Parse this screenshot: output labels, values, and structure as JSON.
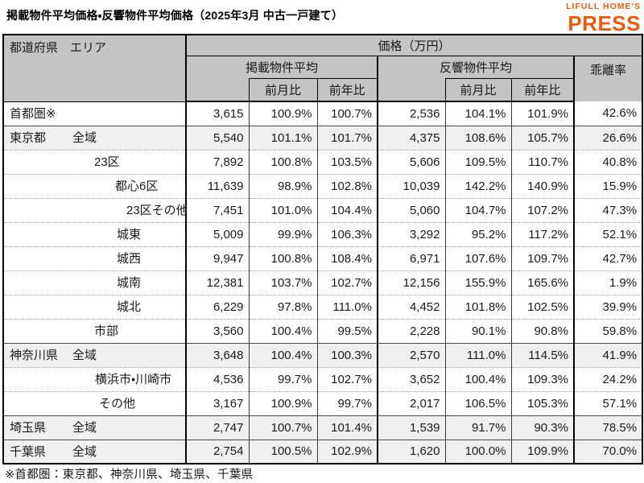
{
  "page": {
    "title": "掲載物件平均価格・反響物件平均価格（2025年3月 中古一戸建て）",
    "logo": {
      "top": "LIFULL HOME'S",
      "bottom": "PRESS",
      "color": "#EA5B0C"
    },
    "footnote": "※首都圏：東京都、神奈川県、埼玉県、千葉県"
  },
  "colors": {
    "logo_orange": "#EA5B0C",
    "header_grey": "#C4C4C4",
    "shaded_row": "#EFEFEF",
    "border_dark": "#000000"
  },
  "table": {
    "header": {
      "corner": "都道府県　エリア",
      "price_group": "価格（万円）",
      "listed_group": "掲載物件平均",
      "response_group": "反響物件平均",
      "divergence": "乖離率",
      "mom": "前月比",
      "yoy": "前年比"
    },
    "rows": [
      {
        "pref": "首都圏※",
        "area": "",
        "indent": 85,
        "shaded": false,
        "sep": "none",
        "cells": [
          "3,615",
          "100.9%",
          "100.7%",
          "2,536",
          "104.1%",
          "101.9%",
          "42.6%"
        ]
      },
      {
        "pref": "東京都",
        "area": "全域",
        "indent": 85,
        "shaded": true,
        "sep": "solid",
        "cells": [
          "5,540",
          "101.1%",
          "101.7%",
          "4,375",
          "108.6%",
          "105.7%",
          "26.6%"
        ]
      },
      {
        "pref": "",
        "area": "23区",
        "indent": 112,
        "shaded": false,
        "sep": "dotted",
        "cells": [
          "7,892",
          "100.8%",
          "103.5%",
          "5,606",
          "109.5%",
          "110.7%",
          "40.8%"
        ]
      },
      {
        "pref": "",
        "area": "都心6区",
        "indent": 138,
        "shaded": false,
        "sep": "dotted",
        "cells": [
          "11,639",
          "98.9%",
          "102.8%",
          "10,039",
          "142.2%",
          "140.9%",
          "15.9%"
        ]
      },
      {
        "pref": "",
        "area": "23区その他",
        "indent": 152,
        "shaded": false,
        "sep": "dotted",
        "cells": [
          "7,451",
          "101.0%",
          "104.4%",
          "5,060",
          "104.7%",
          "107.2%",
          "47.3%"
        ]
      },
      {
        "pref": "",
        "area": "城東",
        "indent": 140,
        "shaded": false,
        "sep": "dotted",
        "cells": [
          "5,009",
          "99.9%",
          "106.3%",
          "3,292",
          "95.2%",
          "117.2%",
          "52.1%"
        ]
      },
      {
        "pref": "",
        "area": "城西",
        "indent": 140,
        "shaded": false,
        "sep": "dotted",
        "cells": [
          "9,947",
          "100.8%",
          "108.4%",
          "6,971",
          "107.6%",
          "109.7%",
          "42.7%"
        ]
      },
      {
        "pref": "",
        "area": "城南",
        "indent": 140,
        "shaded": false,
        "sep": "dotted",
        "cells": [
          "12,381",
          "103.7%",
          "102.7%",
          "12,156",
          "155.9%",
          "165.6%",
          "1.9%"
        ]
      },
      {
        "pref": "",
        "area": "城北",
        "indent": 140,
        "shaded": false,
        "sep": "dotted",
        "cells": [
          "6,229",
          "97.8%",
          "111.0%",
          "4,452",
          "101.8%",
          "102.5%",
          "39.9%"
        ]
      },
      {
        "pref": "",
        "area": "市部",
        "indent": 112,
        "shaded": false,
        "sep": "dotted",
        "cells": [
          "3,560",
          "100.4%",
          "99.5%",
          "2,228",
          "90.1%",
          "90.8%",
          "59.8%"
        ]
      },
      {
        "pref": "神奈川県",
        "area": "全域",
        "indent": 85,
        "shaded": true,
        "sep": "solid",
        "cells": [
          "3,648",
          "100.4%",
          "100.3%",
          "2,570",
          "111.0%",
          "114.5%",
          "41.9%"
        ]
      },
      {
        "pref": "",
        "area": "横浜市・川崎市",
        "indent": 113,
        "shaded": false,
        "sep": "dotted",
        "cells": [
          "4,536",
          "99.7%",
          "102.7%",
          "3,652",
          "100.4%",
          "109.3%",
          "24.2%"
        ]
      },
      {
        "pref": "",
        "area": "その他",
        "indent": 118,
        "shaded": false,
        "sep": "dotted",
        "cells": [
          "3,167",
          "100.9%",
          "99.7%",
          "2,017",
          "106.5%",
          "105.3%",
          "57.1%"
        ]
      },
      {
        "pref": "埼玉県",
        "area": "全域",
        "indent": 85,
        "shaded": true,
        "sep": "solid",
        "cells": [
          "2,747",
          "100.7%",
          "101.4%",
          "1,539",
          "91.7%",
          "90.3%",
          "78.5%"
        ]
      },
      {
        "pref": "千葉県",
        "area": "全域",
        "indent": 85,
        "shaded": true,
        "sep": "solid",
        "cells": [
          "2,754",
          "100.5%",
          "102.9%",
          "1,620",
          "100.0%",
          "109.9%",
          "70.0%"
        ]
      }
    ]
  },
  "chart_data": {
    "type": "table",
    "title": "掲載物件平均価格・反響物件平均価格（2025年3月 中古一戸建て）",
    "unit": "万円",
    "columns": [
      "都道府県",
      "エリア",
      "掲載物件平均 価格",
      "掲載 前月比%",
      "掲載 前年比%",
      "反響物件平均 価格",
      "反響 前月比%",
      "反響 前年比%",
      "乖離率%"
    ],
    "rows": [
      [
        "首都圏※",
        "",
        3615,
        100.9,
        100.7,
        2536,
        104.1,
        101.9,
        42.6
      ],
      [
        "東京都",
        "全域",
        5540,
        101.1,
        101.7,
        4375,
        108.6,
        105.7,
        26.6
      ],
      [
        "東京都",
        "23区",
        7892,
        100.8,
        103.5,
        5606,
        109.5,
        110.7,
        40.8
      ],
      [
        "東京都",
        "都心6区",
        11639,
        98.9,
        102.8,
        10039,
        142.2,
        140.9,
        15.9
      ],
      [
        "東京都",
        "23区その他",
        7451,
        101.0,
        104.4,
        5060,
        104.7,
        107.2,
        47.3
      ],
      [
        "東京都",
        "城東",
        5009,
        99.9,
        106.3,
        3292,
        95.2,
        117.2,
        52.1
      ],
      [
        "東京都",
        "城西",
        9947,
        100.8,
        108.4,
        6971,
        107.6,
        109.7,
        42.7
      ],
      [
        "東京都",
        "城南",
        12381,
        103.7,
        102.7,
        12156,
        155.9,
        165.6,
        1.9
      ],
      [
        "東京都",
        "城北",
        6229,
        97.8,
        111.0,
        4452,
        101.8,
        102.5,
        39.9
      ],
      [
        "東京都",
        "市部",
        3560,
        100.4,
        99.5,
        2228,
        90.1,
        90.8,
        59.8
      ],
      [
        "神奈川県",
        "全域",
        3648,
        100.4,
        100.3,
        2570,
        111.0,
        114.5,
        41.9
      ],
      [
        "神奈川県",
        "横浜市・川崎市",
        4536,
        99.7,
        102.7,
        3652,
        100.4,
        109.3,
        24.2
      ],
      [
        "神奈川県",
        "その他",
        3167,
        100.9,
        99.7,
        2017,
        106.5,
        105.3,
        57.1
      ],
      [
        "埼玉県",
        "全域",
        2747,
        100.7,
        101.4,
        1539,
        91.7,
        90.3,
        78.5
      ],
      [
        "千葉県",
        "全域",
        2754,
        100.5,
        102.9,
        1620,
        100.0,
        109.9,
        70.0
      ]
    ],
    "notes": "※首都圏：東京都、神奈川県、埼玉県、千葉県"
  }
}
